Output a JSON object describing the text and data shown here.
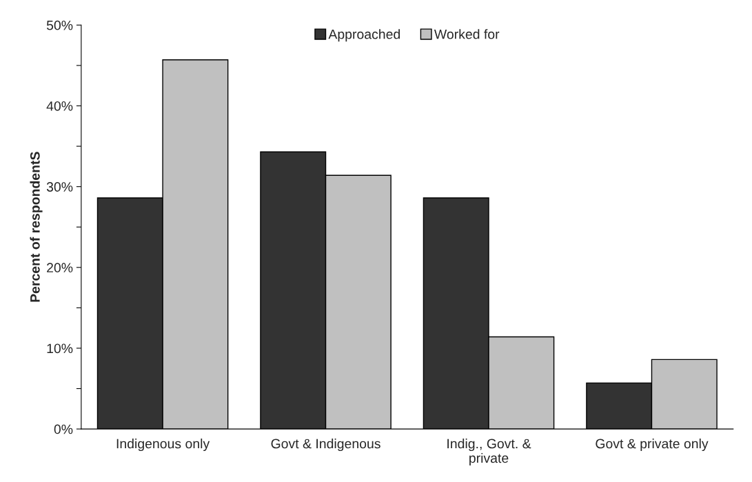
{
  "chart_data": {
    "type": "bar",
    "ylabel": "Percent of respondentS",
    "categories": [
      "Indigenous only",
      "Govt & Indigenous",
      "Indig., Govt. &\nprivate",
      "Govt & private only"
    ],
    "series": [
      {
        "name": "Approached",
        "color": "#333333",
        "values": [
          28.6,
          34.3,
          28.6,
          5.7
        ]
      },
      {
        "name": "Worked for",
        "color": "#c0c0c0",
        "values": [
          45.7,
          31.4,
          11.4,
          8.6
        ]
      }
    ],
    "ylim": [
      0,
      50
    ],
    "yticks": [
      {
        "value": 0,
        "label": "0%"
      },
      {
        "value": 5,
        "label": null
      },
      {
        "value": 10,
        "label": "10%"
      },
      {
        "value": 15,
        "label": null
      },
      {
        "value": 20,
        "label": "20%"
      },
      {
        "value": 25,
        "label": null
      },
      {
        "value": 30,
        "label": "30%"
      },
      {
        "value": 35,
        "label": null
      },
      {
        "value": 40,
        "label": "40%"
      },
      {
        "value": 45,
        "label": null
      },
      {
        "value": 50,
        "label": "50%"
      }
    ],
    "grid": false,
    "legend": "top"
  }
}
